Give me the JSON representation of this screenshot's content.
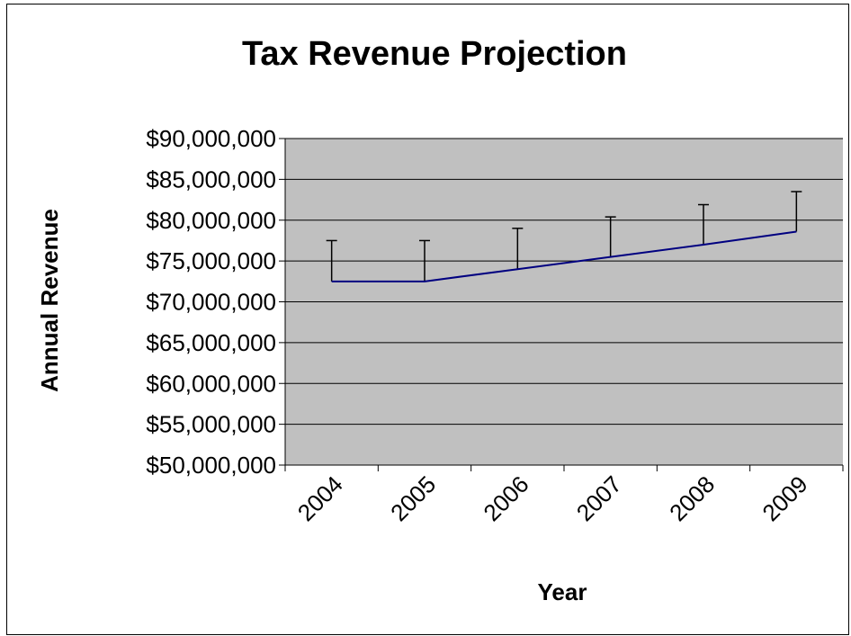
{
  "chart_data": {
    "type": "line",
    "title": "Tax Revenue Projection",
    "xlabel": "Year",
    "ylabel": "Annual Revenue",
    "categories": [
      "2004",
      "2005",
      "2006",
      "2007",
      "2008",
      "2009"
    ],
    "series": [
      {
        "values": [
          72500000,
          72500000,
          74000000,
          75500000,
          77000000,
          78600000
        ],
        "error_plus": [
          5000000,
          5000000,
          5000000,
          4900000,
          4900000,
          4900000
        ]
      }
    ],
    "yticks": [
      "$50,000,000",
      "$55,000,000",
      "$60,000,000",
      "$65,000,000",
      "$70,000,000",
      "$75,000,000",
      "$80,000,000",
      "$85,000,000",
      "$90,000,000"
    ],
    "ylim": [
      50000000,
      90000000
    ],
    "ystep": 5000000,
    "grid": true,
    "legend": "none",
    "colors": {
      "plot_bg": "#c0c0c0",
      "line": "#000080",
      "grid": "#000000",
      "error_bar": "#000000"
    }
  }
}
